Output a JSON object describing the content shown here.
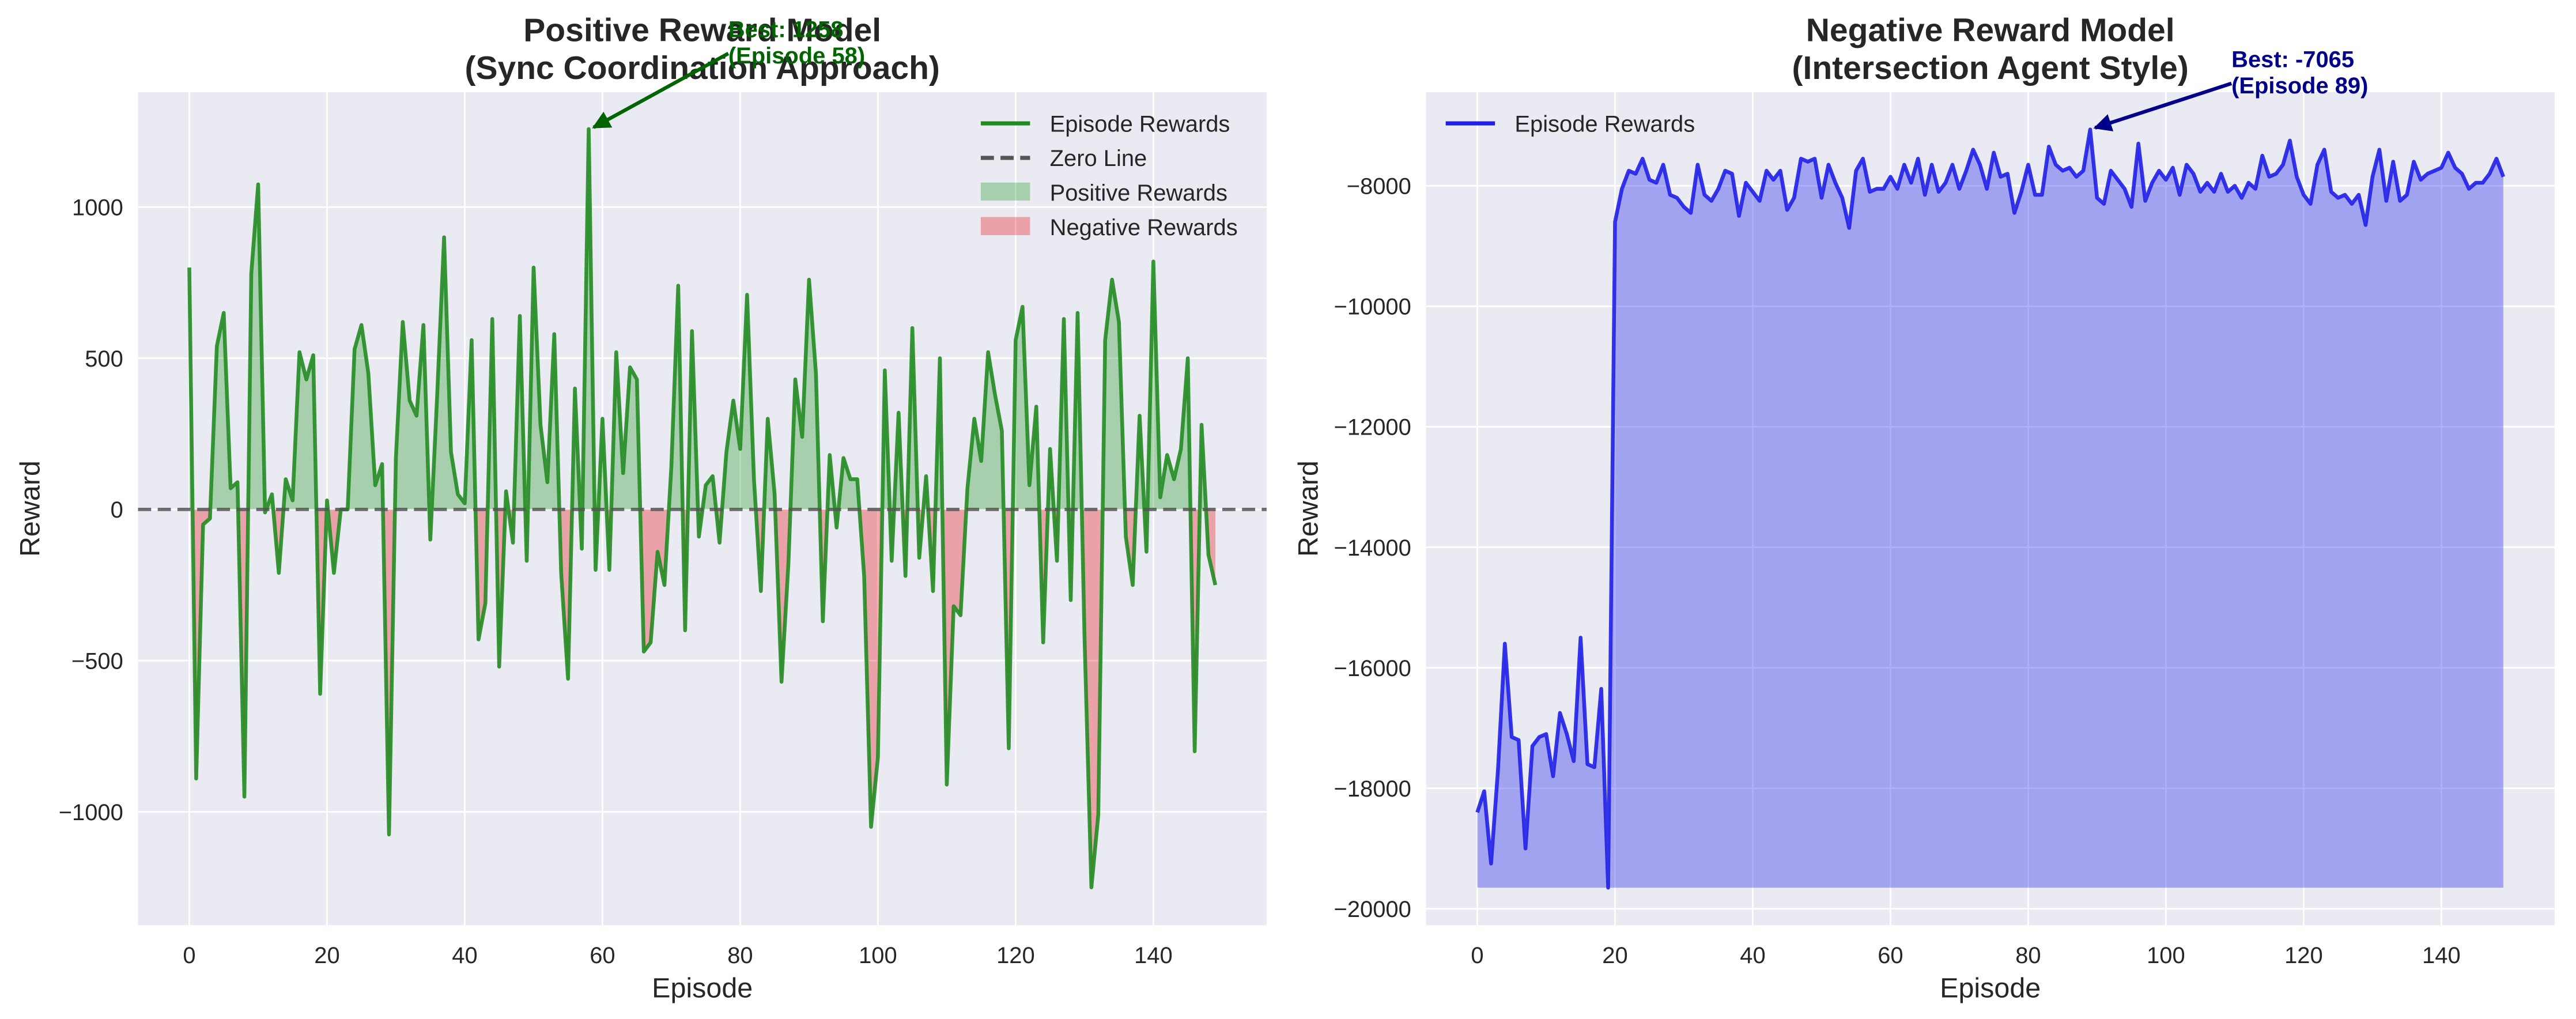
{
  "chart_data": [
    {
      "type": "line",
      "title": [
        "Positive Reward Model",
        "(Sync Coordination Approach)"
      ],
      "xlabel": "Episode",
      "ylabel": "Reward",
      "x": [
        0,
        1,
        2,
        3,
        4,
        5,
        6,
        7,
        8,
        9,
        10,
        11,
        12,
        13,
        14,
        15,
        16,
        17,
        18,
        19,
        20,
        21,
        22,
        23,
        24,
        25,
        26,
        27,
        28,
        29,
        30,
        31,
        32,
        33,
        34,
        35,
        36,
        37,
        38,
        39,
        40,
        41,
        42,
        43,
        44,
        45,
        46,
        47,
        48,
        49,
        50,
        51,
        52,
        53,
        54,
        55,
        56,
        57,
        58,
        59,
        60,
        61,
        62,
        63,
        64,
        65,
        66,
        67,
        68,
        69,
        70,
        71,
        72,
        73,
        74,
        75,
        76,
        77,
        78,
        79,
        80,
        81,
        82,
        83,
        84,
        85,
        86,
        87,
        88,
        89,
        90,
        91,
        92,
        93,
        94,
        95,
        96,
        97,
        98,
        99,
        100,
        101,
        102,
        103,
        104,
        105,
        106,
        107,
        108,
        109,
        110,
        111,
        112,
        113,
        114,
        115,
        116,
        117,
        118,
        119,
        120,
        121,
        122,
        123,
        124,
        125,
        126,
        127,
        128,
        129,
        130,
        131,
        132,
        133,
        134,
        135,
        136,
        137,
        138,
        139,
        140,
        141,
        142,
        143,
        144,
        145,
        146,
        147,
        148,
        149
      ],
      "series": [
        {
          "name": "Episode Rewards",
          "color": "#228b22",
          "values": [
            800,
            -890,
            -50,
            -30,
            540,
            650,
            70,
            90,
            -950,
            780,
            1075,
            -10,
            50,
            -210,
            100,
            30,
            520,
            430,
            510,
            -610,
            30,
            -210,
            0,
            0,
            530,
            610,
            450,
            80,
            150,
            -1075,
            170,
            620,
            360,
            310,
            610,
            -100,
            380,
            900,
            190,
            50,
            20,
            560,
            -430,
            -310,
            630,
            -520,
            60,
            -110,
            640,
            -170,
            800,
            280,
            90,
            580,
            -210,
            -560,
            400,
            -130,
            1258,
            -200,
            300,
            -200,
            520,
            120,
            470,
            430,
            -470,
            -440,
            -140,
            -250,
            140,
            740,
            -400,
            590,
            -90,
            80,
            110,
            -110,
            190,
            360,
            200,
            710,
            100,
            -270,
            300,
            50,
            -570,
            -180,
            430,
            240,
            760,
            450,
            -370,
            180,
            -60,
            170,
            100,
            100,
            -220,
            -1050,
            -820,
            460,
            -170,
            320,
            -220,
            600,
            -160,
            110,
            -270,
            500,
            -910,
            -320,
            -350,
            70,
            300,
            160,
            520,
            380,
            260,
            -790,
            560,
            670,
            80,
            340,
            -440,
            200,
            -170,
            630,
            -300,
            650,
            -420,
            -1250,
            -1010,
            560,
            760,
            620,
            -90,
            -250,
            310,
            -140,
            820,
            40,
            180,
            100,
            200,
            500,
            -800,
            280,
            -150,
            -250
          ]
        }
      ],
      "reference_line": {
        "name": "Zero Line",
        "value": 0,
        "color": "#555555"
      },
      "fills": [
        {
          "name": "Positive Rewards",
          "color": "#2e9e2e"
        },
        {
          "name": "Negative Rewards",
          "color": "#e83a3a"
        }
      ],
      "annotation": {
        "text": [
          "Best: 1258",
          "(Episode 58)"
        ],
        "color": "#006400"
      },
      "xlim": [
        -7.45,
        156.45
      ],
      "xticks": [
        0,
        20,
        40,
        60,
        80,
        100,
        120,
        140
      ],
      "ylim": [
        -1375,
        1380
      ],
      "yticks": [
        {
          "value": -1000,
          "label": "−1000"
        },
        {
          "value": -500,
          "label": "−500"
        },
        0,
        500,
        1000
      ],
      "grid": true,
      "legend": "upper right"
    },
    {
      "type": "area",
      "title": [
        "Negative Reward Model",
        "(Intersection Agent Style)"
      ],
      "xlabel": "Episode",
      "ylabel": "Reward",
      "x": [
        0,
        1,
        2,
        3,
        4,
        5,
        6,
        7,
        8,
        9,
        10,
        11,
        12,
        13,
        14,
        15,
        16,
        17,
        18,
        19,
        20,
        21,
        22,
        23,
        24,
        25,
        26,
        27,
        28,
        29,
        30,
        31,
        32,
        33,
        34,
        35,
        36,
        37,
        38,
        39,
        40,
        41,
        42,
        43,
        44,
        45,
        46,
        47,
        48,
        49,
        50,
        51,
        52,
        53,
        54,
        55,
        56,
        57,
        58,
        59,
        60,
        61,
        62,
        63,
        64,
        65,
        66,
        67,
        68,
        69,
        70,
        71,
        72,
        73,
        74,
        75,
        76,
        77,
        78,
        79,
        80,
        81,
        82,
        83,
        84,
        85,
        86,
        87,
        88,
        89,
        90,
        91,
        92,
        93,
        94,
        95,
        96,
        97,
        98,
        99,
        100,
        101,
        102,
        103,
        104,
        105,
        106,
        107,
        108,
        109,
        110,
        111,
        112,
        113,
        114,
        115,
        116,
        117,
        118,
        119,
        120,
        121,
        122,
        123,
        124,
        125,
        126,
        127,
        128,
        129,
        130,
        131,
        132,
        133,
        134,
        135,
        136,
        137,
        138,
        139,
        140,
        141,
        142,
        143,
        144,
        145,
        146,
        147,
        148,
        149
      ],
      "series": [
        {
          "name": "Episode Rewards",
          "color": "#1f1fe8",
          "values": [
            -18400,
            -18050,
            -19250,
            -17700,
            -15600,
            -17150,
            -17200,
            -19000,
            -17300,
            -17150,
            -17100,
            -17800,
            -16750,
            -17100,
            -17550,
            -15500,
            -17600,
            -17650,
            -16350,
            -19650,
            -8600,
            -8050,
            -7750,
            -7800,
            -7550,
            -7900,
            -7950,
            -7650,
            -8150,
            -8200,
            -8350,
            -8450,
            -7650,
            -8150,
            -8250,
            -8050,
            -7750,
            -7800,
            -8500,
            -7950,
            -8100,
            -8250,
            -7750,
            -7900,
            -7750,
            -8400,
            -8200,
            -7550,
            -7600,
            -7550,
            -8200,
            -7650,
            -7950,
            -8200,
            -8700,
            -7750,
            -7550,
            -8100,
            -8050,
            -8050,
            -7850,
            -8050,
            -7650,
            -7950,
            -7550,
            -8150,
            -7650,
            -8100,
            -7950,
            -7650,
            -8050,
            -7750,
            -7400,
            -7650,
            -8050,
            -7450,
            -7850,
            -7800,
            -8450,
            -8100,
            -7650,
            -8150,
            -8150,
            -7350,
            -7650,
            -7750,
            -7700,
            -7850,
            -7750,
            -7065,
            -8200,
            -8300,
            -7750,
            -7900,
            -8050,
            -8350,
            -7300,
            -8250,
            -7950,
            -7750,
            -7900,
            -7700,
            -8150,
            -7650,
            -7800,
            -8100,
            -7950,
            -8100,
            -7800,
            -8100,
            -8000,
            -8200,
            -7950,
            -8050,
            -7500,
            -7850,
            -7800,
            -7650,
            -7250,
            -7850,
            -8150,
            -8300,
            -7650,
            -7400,
            -8100,
            -8200,
            -8150,
            -8300,
            -8150,
            -8650,
            -7850,
            -7400,
            -8250,
            -7600,
            -8250,
            -8150,
            -7600,
            -7900,
            -7800,
            -7750,
            -7700,
            -7450,
            -7700,
            -7800,
            -8050,
            -7950,
            -7950,
            -7800,
            -7550,
            -7850
          ]
        }
      ],
      "fill_color": "#4a4df0",
      "annotation": {
        "text": [
          "Best: -7065",
          "(Episode 89)"
        ],
        "color": "#00008b"
      },
      "xlim": [
        -7.45,
        156.45
      ],
      "xticks": [
        0,
        20,
        40,
        60,
        80,
        100,
        120,
        140
      ],
      "ylim": [
        -20273,
        -6446
      ],
      "yticks": [
        {
          "value": -20000,
          "label": "−20000"
        },
        {
          "value": -18000,
          "label": "−18000"
        },
        {
          "value": -16000,
          "label": "−16000"
        },
        {
          "value": -14000,
          "label": "−14000"
        },
        {
          "value": -12000,
          "label": "−12000"
        },
        {
          "value": -10000,
          "label": "−10000"
        },
        {
          "value": -8000,
          "label": "−8000"
        }
      ],
      "grid": true,
      "legend": "upper left"
    }
  ]
}
